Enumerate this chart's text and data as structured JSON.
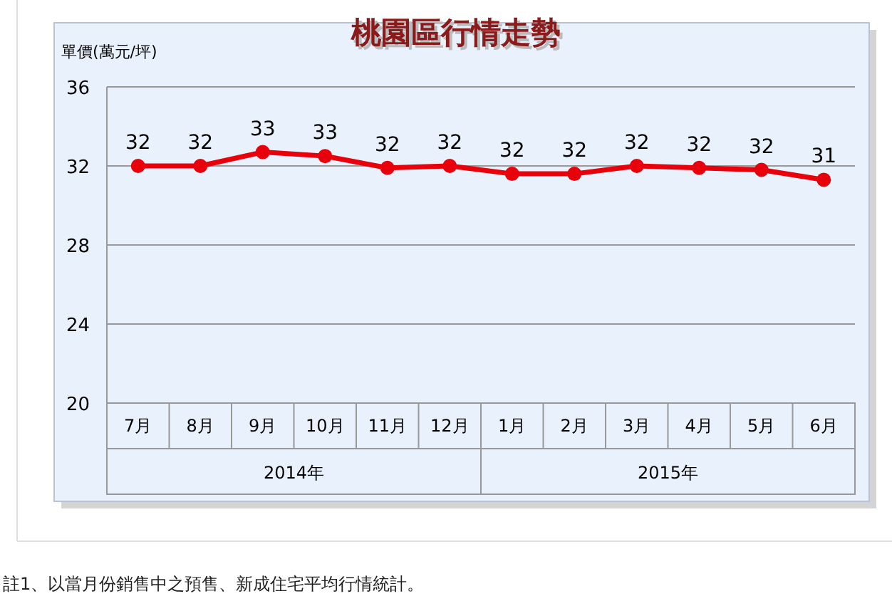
{
  "chart_data": {
    "type": "line",
    "title": "桃園區行情走勢",
    "ylabel": "單價(萬元/坪)",
    "categories": [
      "7月",
      "8月",
      "9月",
      "10月",
      "11月",
      "12月",
      "1月",
      "2月",
      "3月",
      "4月",
      "5月",
      "6月"
    ],
    "series": [
      {
        "color": "#e8000b",
        "values": [
          32.0,
          32.0,
          32.7,
          32.5,
          31.9,
          32.0,
          31.6,
          31.6,
          32.0,
          31.9,
          31.8,
          31.3
        ],
        "value_labels": [
          "32",
          "32",
          "33",
          "33",
          "32",
          "32",
          "32",
          "32",
          "32",
          "32",
          "32",
          "31"
        ]
      }
    ],
    "ylim": [
      20,
      36
    ],
    "yticks": [
      20,
      24,
      28,
      32,
      36
    ],
    "grid": "y",
    "marker": "circle",
    "line_style": "solid",
    "annotations": [
      "2014年",
      "2015年",
      "註1、以當月份銷售中之預售、新成住宅平均行情統計。"
    ]
  }
}
